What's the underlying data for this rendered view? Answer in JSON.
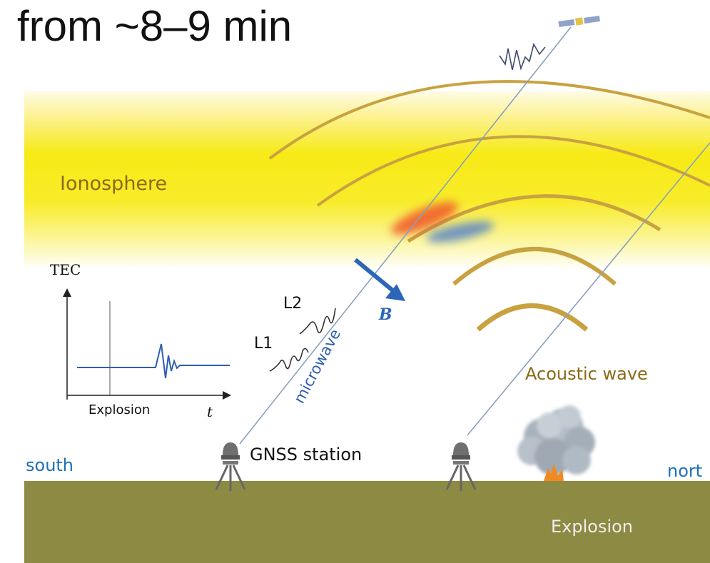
{
  "headline": "from ~8–9 min",
  "labels": {
    "ionosphere": "Ionosphere",
    "tec": "TEC",
    "l2": "L2",
    "l1": "L1",
    "microwave": "microwave",
    "b_field": "B",
    "acoustic_wave": "Acoustic wave",
    "explosion_axis": "Explosion",
    "time_axis": "t",
    "gnss_station": "GNSS station",
    "south": "south",
    "north": "nort",
    "explosion_ground": "Explosion"
  },
  "colors": {
    "ionosphere": "#f7ea16",
    "ground": "#8d8a43",
    "wave_arc": "#c8a240",
    "label_brown": "#8a6a17",
    "blue": "#2e5fae",
    "direction_blue": "#1f6fb8"
  }
}
